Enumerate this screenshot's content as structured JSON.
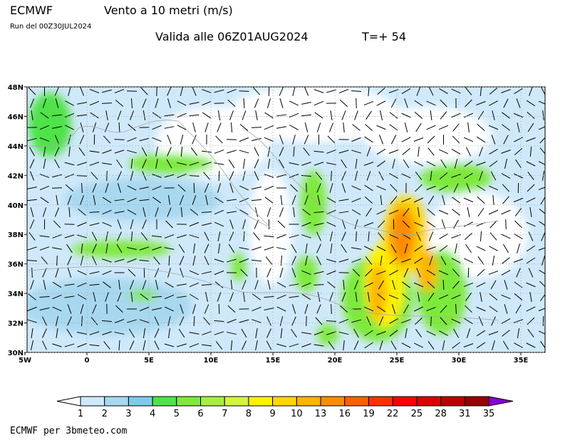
{
  "header": {
    "model": "ECMWF",
    "title": "Vento a 10 metri (m/s)",
    "run": "Run del 00Z30JUL2024",
    "valid": "Valida alle 06Z01AUG2024",
    "step": "T=+ 54"
  },
  "map": {
    "lat_ticks": [
      "48N",
      "46N",
      "44N",
      "42N",
      "40N",
      "38N",
      "36N",
      "34N",
      "32N",
      "30N"
    ],
    "lon_ticks": [
      "5W",
      "0",
      "5E",
      "10E",
      "15E",
      "20E",
      "25E",
      "30E",
      "35E"
    ]
  },
  "colorbar": {
    "labels": [
      "1",
      "2",
      "3",
      "4",
      "5",
      "6",
      "7",
      "8",
      "9",
      "10",
      "13",
      "16",
      "19",
      "22",
      "25",
      "28",
      "31",
      "35"
    ],
    "colors": [
      "#cfe9fb",
      "#a8d8ef",
      "#7ccbe9",
      "#50e24a",
      "#7dea3a",
      "#a8ef3c",
      "#d4f53a",
      "#fff200",
      "#ffd700",
      "#ffb400",
      "#ff8c00",
      "#ff6000",
      "#ff3000",
      "#ff0000",
      "#dd0000",
      "#bb0000",
      "#990000"
    ],
    "under_color": "#ffffff",
    "over_color": "#8a00d4"
  },
  "footer": "ECMWF per 3bmeteo.com"
}
